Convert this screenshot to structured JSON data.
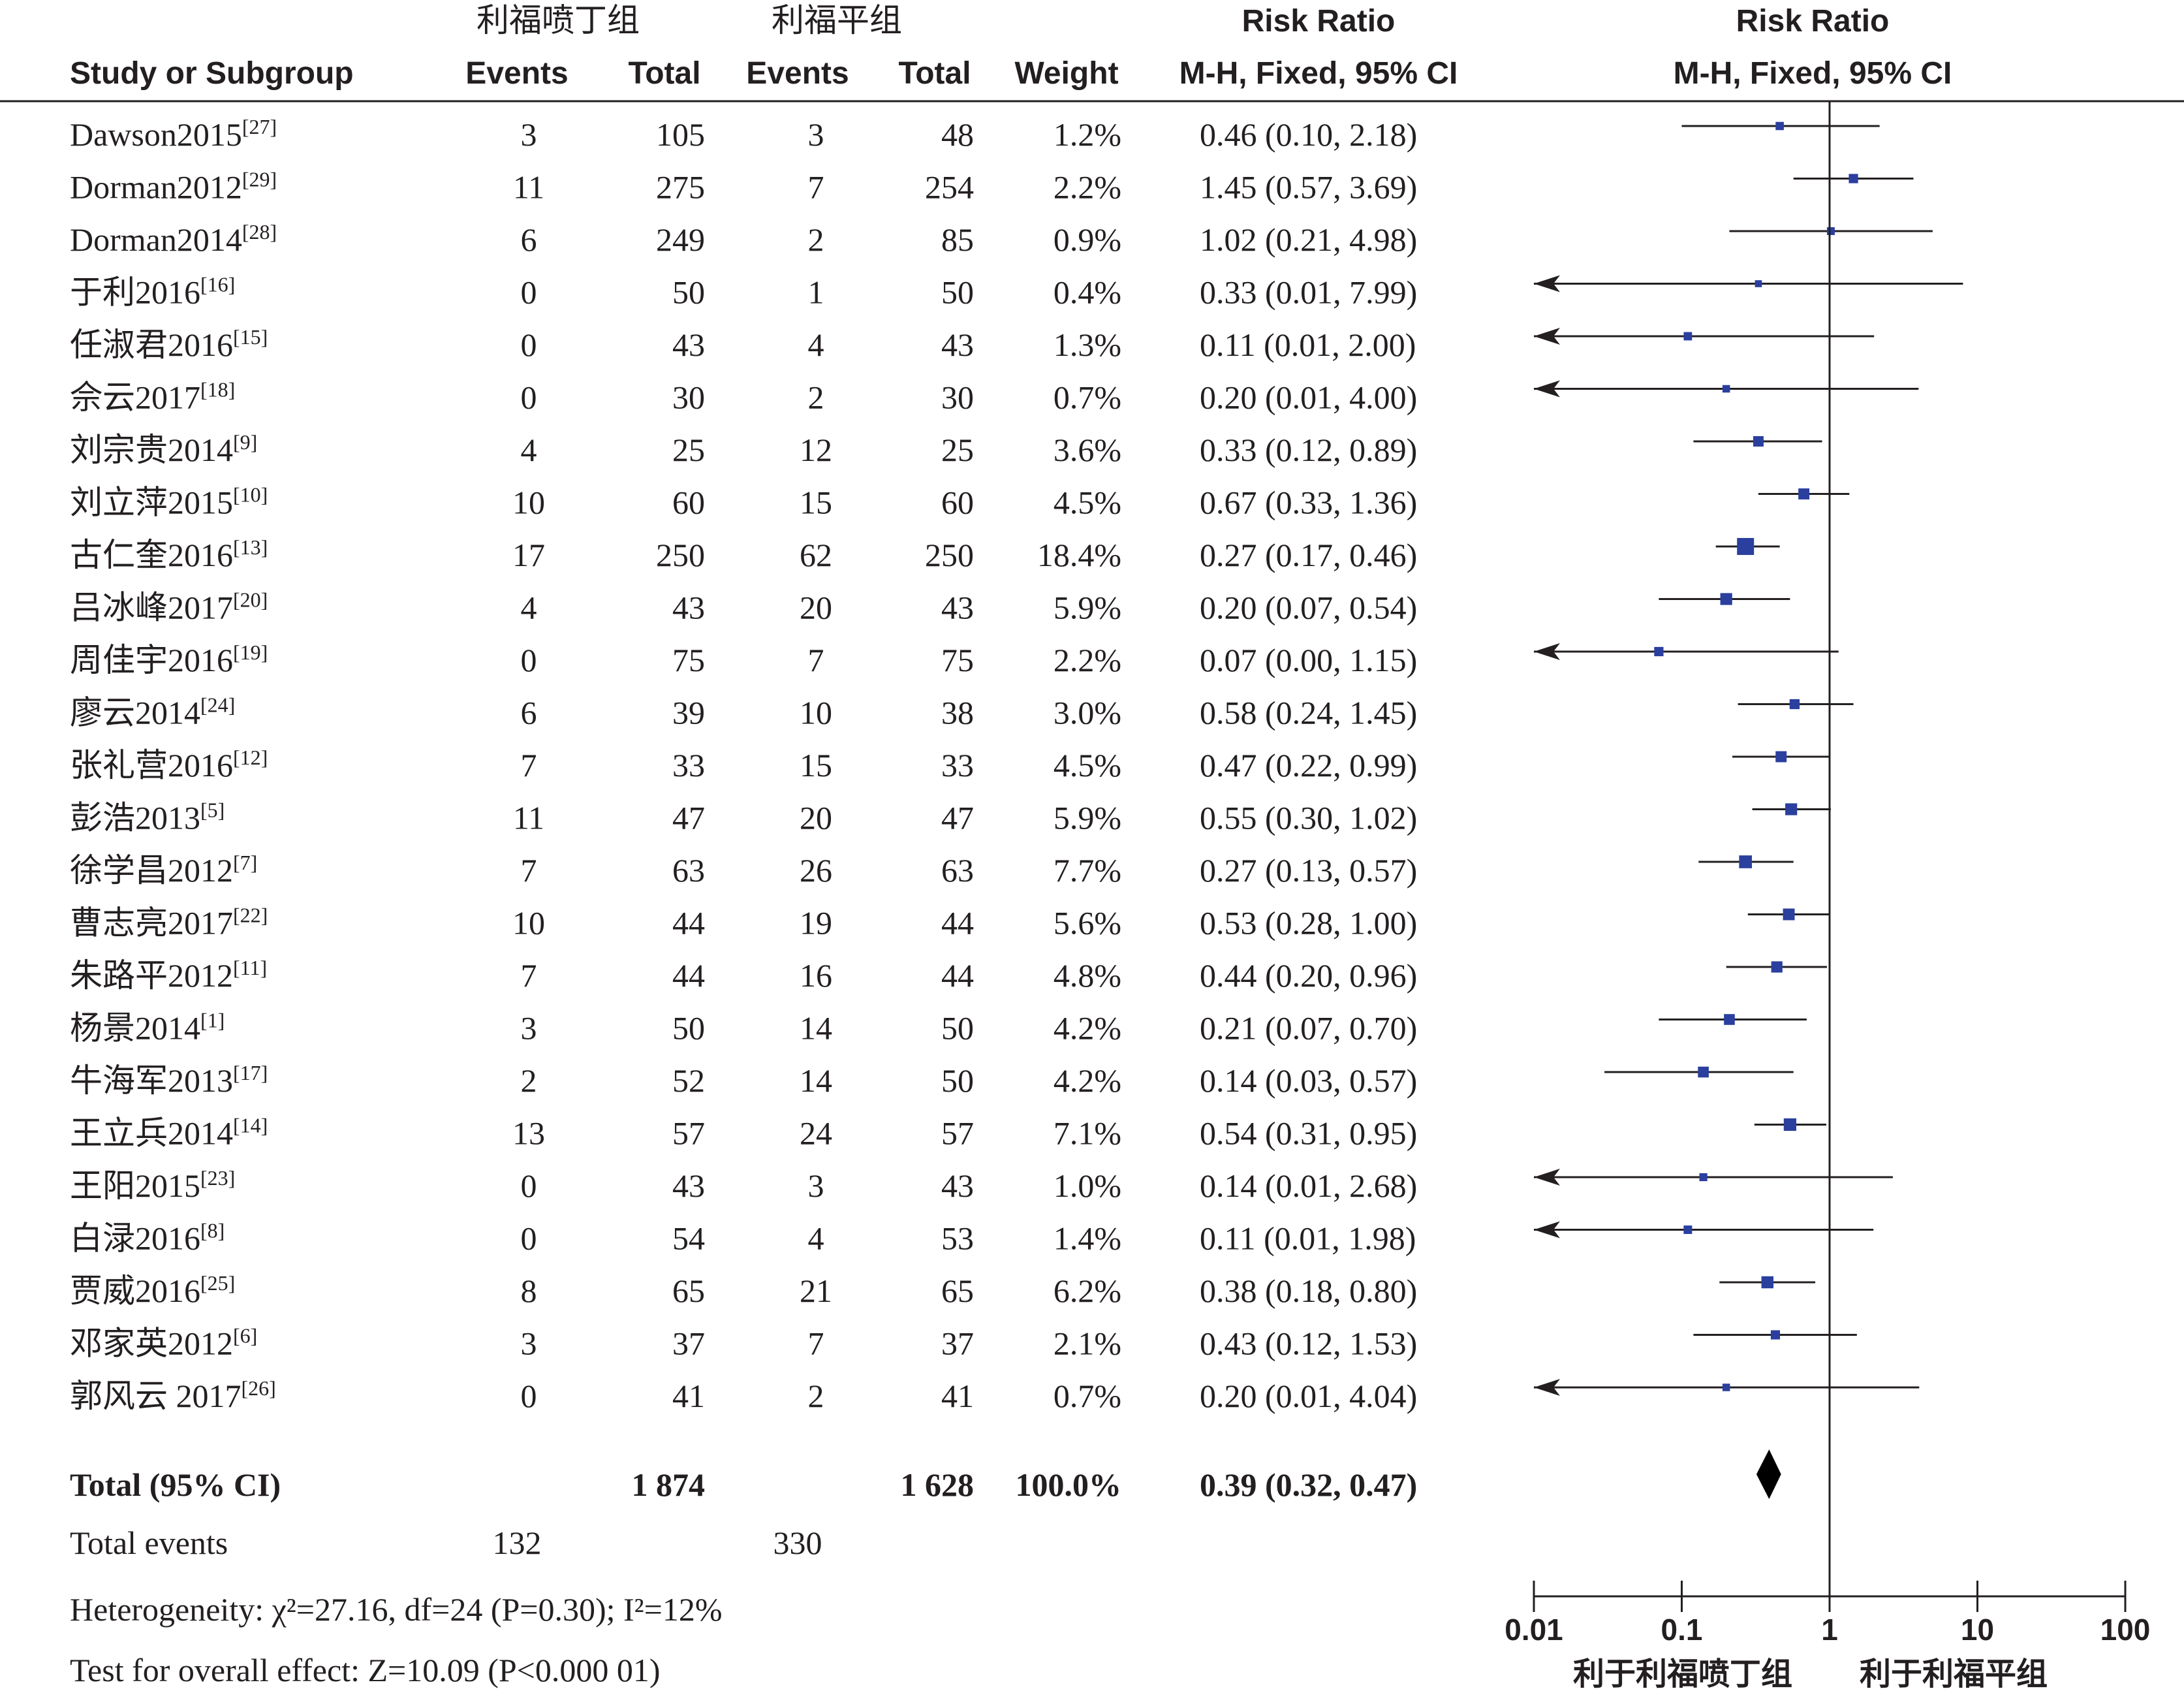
{
  "header": {
    "group1": "利福喷丁组",
    "group2": "利福平组",
    "risk_ratio": "Risk Ratio",
    "study_or_subgroup": "Study or Subgroup",
    "events": "Events",
    "total": "Total",
    "weight": "Weight",
    "method": "M-H, Fixed, 95% CI"
  },
  "chart_data": {
    "type": "forest",
    "axis": {
      "scale": "log",
      "ticks": [
        "0.01",
        "0.1",
        "1",
        "10",
        "100"
      ],
      "tick_values": [
        0.01,
        0.1,
        1,
        10,
        100
      ],
      "range": [
        0.01,
        100
      ]
    },
    "favours_left": "利于利福喷丁组",
    "favours_right": "利于利福平组",
    "studies": [
      {
        "name": "Dawson2015",
        "ref": "[27]",
        "e1": "3",
        "t1": "105",
        "e2": "3",
        "t2": "48",
        "weight": "1.2%",
        "ci_text": "0.46 (0.10, 2.18)",
        "rr": 0.46,
        "lo": 0.1,
        "hi": 2.18
      },
      {
        "name": "Dorman2012",
        "ref": "[29]",
        "e1": "11",
        "t1": "275",
        "e2": "7",
        "t2": "254",
        "weight": "2.2%",
        "ci_text": "1.45 (0.57, 3.69)",
        "rr": 1.45,
        "lo": 0.57,
        "hi": 3.69
      },
      {
        "name": "Dorman2014",
        "ref": "[28]",
        "e1": "6",
        "t1": "249",
        "e2": "2",
        "t2": "85",
        "weight": "0.9%",
        "ci_text": "1.02 (0.21, 4.98)",
        "rr": 1.02,
        "lo": 0.21,
        "hi": 4.98
      },
      {
        "name": "于利2016",
        "ref": "[16]",
        "e1": "0",
        "t1": "50",
        "e2": "1",
        "t2": "50",
        "weight": "0.4%",
        "ci_text": "0.33 (0.01, 7.99)",
        "rr": 0.33,
        "lo": 0.01,
        "hi": 7.99
      },
      {
        "name": "任淑君2016",
        "ref": "[15]",
        "e1": "0",
        "t1": "43",
        "e2": "4",
        "t2": "43",
        "weight": "1.3%",
        "ci_text": "0.11 (0.01, 2.00)",
        "rr": 0.11,
        "lo": 0.01,
        "hi": 2.0
      },
      {
        "name": "佘云2017",
        "ref": "[18]",
        "e1": "0",
        "t1": "30",
        "e2": "2",
        "t2": "30",
        "weight": "0.7%",
        "ci_text": "0.20 (0.01, 4.00)",
        "rr": 0.2,
        "lo": 0.01,
        "hi": 4.0
      },
      {
        "name": "刘宗贵2014",
        "ref": "[9]",
        "e1": "4",
        "t1": "25",
        "e2": "12",
        "t2": "25",
        "weight": "3.6%",
        "ci_text": "0.33 (0.12, 0.89)",
        "rr": 0.33,
        "lo": 0.12,
        "hi": 0.89
      },
      {
        "name": "刘立萍2015",
        "ref": "[10]",
        "e1": "10",
        "t1": "60",
        "e2": "15",
        "t2": "60",
        "weight": "4.5%",
        "ci_text": "0.67 (0.33, 1.36)",
        "rr": 0.67,
        "lo": 0.33,
        "hi": 1.36
      },
      {
        "name": "古仁奎2016",
        "ref": "[13]",
        "e1": "17",
        "t1": "250",
        "e2": "62",
        "t2": "250",
        "weight": "18.4%",
        "ci_text": "0.27 (0.17, 0.46)",
        "rr": 0.27,
        "lo": 0.17,
        "hi": 0.46
      },
      {
        "name": "吕冰峰2017",
        "ref": "[20]",
        "e1": "4",
        "t1": "43",
        "e2": "20",
        "t2": "43",
        "weight": "5.9%",
        "ci_text": "0.20 (0.07, 0.54)",
        "rr": 0.2,
        "lo": 0.07,
        "hi": 0.54
      },
      {
        "name": "周佳宇2016",
        "ref": "[19]",
        "e1": "0",
        "t1": "75",
        "e2": "7",
        "t2": "75",
        "weight": "2.2%",
        "ci_text": "0.07 (0.00, 1.15)",
        "rr": 0.07,
        "lo": 0.0,
        "hi": 1.15
      },
      {
        "name": "廖云2014",
        "ref": "[24]",
        "e1": "6",
        "t1": "39",
        "e2": "10",
        "t2": "38",
        "weight": "3.0%",
        "ci_text": "0.58 (0.24, 1.45)",
        "rr": 0.58,
        "lo": 0.24,
        "hi": 1.45
      },
      {
        "name": "张礼营2016",
        "ref": "[12]",
        "e1": "7",
        "t1": "33",
        "e2": "15",
        "t2": "33",
        "weight": "4.5%",
        "ci_text": "0.47 (0.22, 0.99)",
        "rr": 0.47,
        "lo": 0.22,
        "hi": 0.99
      },
      {
        "name": "彭浩2013",
        "ref": "[5]",
        "e1": "11",
        "t1": "47",
        "e2": "20",
        "t2": "47",
        "weight": "5.9%",
        "ci_text": "0.55 (0.30, 1.02)",
        "rr": 0.55,
        "lo": 0.3,
        "hi": 1.02
      },
      {
        "name": "徐学昌2012",
        "ref": "[7]",
        "e1": "7",
        "t1": "63",
        "e2": "26",
        "t2": "63",
        "weight": "7.7%",
        "ci_text": "0.27 (0.13, 0.57)",
        "rr": 0.27,
        "lo": 0.13,
        "hi": 0.57
      },
      {
        "name": "曹志亮2017",
        "ref": "[22]",
        "e1": "10",
        "t1": "44",
        "e2": "19",
        "t2": "44",
        "weight": "5.6%",
        "ci_text": "0.53 (0.28, 1.00)",
        "rr": 0.53,
        "lo": 0.28,
        "hi": 1.0
      },
      {
        "name": "朱路平2012",
        "ref": "[11]",
        "e1": "7",
        "t1": "44",
        "e2": "16",
        "t2": "44",
        "weight": "4.8%",
        "ci_text": "0.44 (0.20, 0.96)",
        "rr": 0.44,
        "lo": 0.2,
        "hi": 0.96
      },
      {
        "name": "杨景2014",
        "ref": "[1]",
        "e1": "3",
        "t1": "50",
        "e2": "14",
        "t2": "50",
        "weight": "4.2%",
        "ci_text": "0.21 (0.07, 0.70)",
        "rr": 0.21,
        "lo": 0.07,
        "hi": 0.7
      },
      {
        "name": "牛海军2013",
        "ref": "[17]",
        "e1": "2",
        "t1": "52",
        "e2": "14",
        "t2": "50",
        "weight": "4.2%",
        "ci_text": "0.14 (0.03, 0.57)",
        "rr": 0.14,
        "lo": 0.03,
        "hi": 0.57
      },
      {
        "name": "王立兵2014",
        "ref": "[14]",
        "e1": "13",
        "t1": "57",
        "e2": "24",
        "t2": "57",
        "weight": "7.1%",
        "ci_text": "0.54 (0.31, 0.95)",
        "rr": 0.54,
        "lo": 0.31,
        "hi": 0.95
      },
      {
        "name": "王阳2015",
        "ref": "[23]",
        "e1": "0",
        "t1": "43",
        "e2": "3",
        "t2": "43",
        "weight": "1.0%",
        "ci_text": "0.14 (0.01, 2.68)",
        "rr": 0.14,
        "lo": 0.01,
        "hi": 2.68
      },
      {
        "name": "白渌2016",
        "ref": "[8]",
        "e1": "0",
        "t1": "54",
        "e2": "4",
        "t2": "53",
        "weight": "1.4%",
        "ci_text": "0.11 (0.01, 1.98)",
        "rr": 0.11,
        "lo": 0.01,
        "hi": 1.98
      },
      {
        "name": "贾威2016",
        "ref": "[25]",
        "e1": "8",
        "t1": "65",
        "e2": "21",
        "t2": "65",
        "weight": "6.2%",
        "ci_text": "0.38 (0.18, 0.80)",
        "rr": 0.38,
        "lo": 0.18,
        "hi": 0.8
      },
      {
        "name": "邓家英2012",
        "ref": "[6]",
        "e1": "3",
        "t1": "37",
        "e2": "7",
        "t2": "37",
        "weight": "2.1%",
        "ci_text": "0.43 (0.12, 1.53)",
        "rr": 0.43,
        "lo": 0.12,
        "hi": 1.53
      },
      {
        "name": "郭风云 2017",
        "ref": "[26]",
        "e1": "0",
        "t1": "41",
        "e2": "2",
        "t2": "41",
        "weight": "0.7%",
        "ci_text": "0.20 (0.01, 4.04)",
        "rr": 0.2,
        "lo": 0.01,
        "hi": 4.04
      }
    ],
    "total": {
      "label": "Total (95% CI)",
      "t1": "1 874",
      "t2": "1 628",
      "weight": "100.0%",
      "ci_text": "0.39 (0.32, 0.47)",
      "rr": 0.39,
      "lo": 0.32,
      "hi": 0.47
    },
    "total_events": {
      "label": "Total events",
      "e1": "132",
      "e2": "330"
    },
    "heterogeneity": "Heterogeneity: χ²=27.16, df=24 (P=0.30); I²=12%",
    "overall_effect": "Test for overall effect: Z=10.09 (P<0.000 01)",
    "colors": {
      "marker": "#2a3f9e",
      "text": "#231f20",
      "line": "#231f20"
    }
  }
}
